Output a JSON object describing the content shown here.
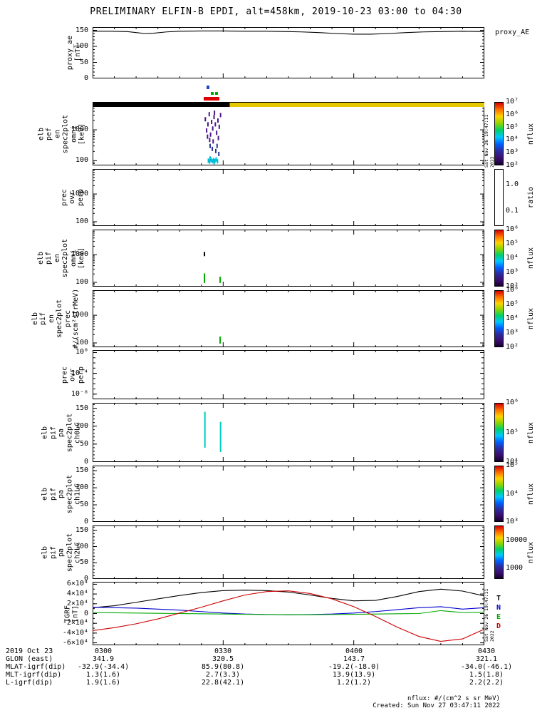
{
  "title": "PRELIMINARY ELFIN-B EPDI, alt=458km, 2019-10-23 03:00 to 04:30",
  "timestamps": {
    "vertical": "Sat Nov 26 19:47:11 2022",
    "created": "Created: Sun Nov 27 03:47:11 2022",
    "nflux_units": "nflux: #/(cm^2 s sr MeV)"
  },
  "right_labels": {
    "proxy_ae": "proxy_AE"
  },
  "bottom_axis": {
    "rows": [
      {
        "label": "2019 Oct 23",
        "values": [
          "0300",
          "0330",
          "0400",
          "0430"
        ]
      },
      {
        "label": "GLON (east)",
        "values": [
          "341.9",
          "320.5",
          "143.7",
          "321.1"
        ]
      },
      {
        "label": "MLAT-igrf(dip)",
        "values": [
          "-32.9(-34.4)",
          "85.9(80.8)",
          "-19.2(-18.0)",
          "-34.0(-46.1)"
        ]
      },
      {
        "label": "MLT-igrf(dip)",
        "values": [
          "1.3(1.6)",
          "2.7(3.3)",
          "13.9(13.9)",
          "1.5(1.8)"
        ]
      },
      {
        "label": "L-igrf(dip)",
        "values": [
          "1.9(1.6)",
          "22.8(42.1)",
          "1.2(1.2)",
          "2.2(2.2)"
        ]
      }
    ]
  },
  "chart_data": [
    {
      "id": "proxy_ae",
      "type": "line",
      "yscale": "linear",
      "ylim": [
        0,
        160
      ],
      "yminor": 10,
      "xlim_minutes_after_0300": [
        0,
        90
      ],
      "ylabel": "proxy_ae\n[nT]",
      "yticks": [
        {
          "v": 0,
          "label": "0"
        },
        {
          "v": 50,
          "label": "50"
        },
        {
          "v": 100,
          "label": "100"
        },
        {
          "v": 150,
          "label": "150"
        }
      ],
      "series": [
        {
          "name": "proxy_AE",
          "color": "#000000",
          "x": [
            0,
            4,
            8,
            10,
            12,
            14,
            17,
            20,
            25,
            30,
            35,
            40,
            45,
            48,
            52,
            56,
            60,
            64,
            68,
            72,
            76,
            80,
            85,
            90
          ],
          "y": [
            147,
            147,
            146,
            143,
            140,
            141,
            145,
            147,
            148,
            148,
            147,
            147,
            146,
            145,
            143,
            140,
            138,
            138,
            140,
            143,
            145,
            146,
            147,
            146
          ]
        }
      ]
    },
    {
      "id": "pef_en_omni",
      "type": "spectrogram",
      "yscale": "log",
      "ylim": [
        70,
        8000
      ],
      "ylabel": "elb\npef\nen\nspec2plot\nomni\n[keV]",
      "yticks": [
        {
          "v": 100,
          "label": "100"
        },
        {
          "v": 1000,
          "label": "1000"
        }
      ],
      "top_bars": [
        {
          "t0": 0,
          "t1": 31.5,
          "color": "#000000"
        },
        {
          "t0": 31.5,
          "t1": 90,
          "color": "#e6c800"
        }
      ],
      "above_marks": [
        {
          "t0": 25.6,
          "t1": 29.2,
          "dy": -7,
          "h": 5,
          "color": "#dd0000"
        },
        {
          "t0": 26.2,
          "t1": 26.8,
          "dy": -23,
          "h": 5,
          "color": "#2244cc"
        },
        {
          "t0": 27.2,
          "t1": 27.9,
          "dy": -14,
          "h": 4,
          "color": "#00aa00"
        },
        {
          "t0": 28.2,
          "t1": 28.8,
          "dy": -14,
          "h": 4,
          "color": "#00aa00"
        }
      ],
      "points": [
        {
          "t": 25.9,
          "y": 2200,
          "color": "#4a148c"
        },
        {
          "t": 26.2,
          "y": 950,
          "color": "#4a148c"
        },
        {
          "t": 26.5,
          "y": 1500,
          "color": "#4a148c"
        },
        {
          "t": 26.8,
          "y": 3200,
          "color": "#4a148c"
        },
        {
          "t": 27.1,
          "y": 700,
          "color": "#4a148c"
        },
        {
          "t": 27.35,
          "y": 1800,
          "color": "#4a148c"
        },
        {
          "t": 27.6,
          "y": 1100,
          "color": "#4a148c"
        },
        {
          "t": 27.9,
          "y": 2600,
          "color": "#4a148c"
        },
        {
          "t": 28.2,
          "y": 1500,
          "color": "#4a148c"
        },
        {
          "t": 28.5,
          "y": 800,
          "color": "#4a148c"
        },
        {
          "t": 28.8,
          "y": 2000,
          "color": "#4a148c"
        },
        {
          "t": 29.1,
          "y": 1250,
          "color": "#4a148c"
        },
        {
          "t": 29.4,
          "y": 3000,
          "color": "#4a148c"
        },
        {
          "t": 26.9,
          "y": 470,
          "color": "#4a148c"
        },
        {
          "t": 27.7,
          "y": 420,
          "color": "#4a148c"
        },
        {
          "t": 28.9,
          "y": 540,
          "color": "#4a148c"
        },
        {
          "t": 28.0,
          "y": 3600,
          "color": "#4a148c"
        },
        {
          "t": 26.4,
          "y": 600,
          "color": "#4a148c"
        },
        {
          "t": 27.0,
          "y": 300,
          "color": "#283593"
        },
        {
          "t": 27.5,
          "y": 240,
          "color": "#283593"
        },
        {
          "t": 28.3,
          "y": 205,
          "color": "#283593"
        },
        {
          "t": 29.0,
          "y": 165,
          "color": "#283593"
        },
        {
          "t": 28.6,
          "y": 300,
          "color": "#283593"
        },
        {
          "t": 26.6,
          "y": 100,
          "color": "#00bcd4"
        },
        {
          "t": 26.9,
          "y": 93,
          "color": "#00bcd4"
        },
        {
          "t": 27.2,
          "y": 108,
          "color": "#00bcd4"
        },
        {
          "t": 27.5,
          "y": 96,
          "color": "#00bcd4"
        },
        {
          "t": 27.8,
          "y": 104,
          "color": "#00bcd4"
        },
        {
          "t": 28.1,
          "y": 98,
          "color": "#00bcd4"
        },
        {
          "t": 28.4,
          "y": 110,
          "color": "#00bcd4"
        },
        {
          "t": 28.7,
          "y": 95,
          "color": "#00bcd4"
        },
        {
          "t": 27.0,
          "y": 118,
          "color": "#00bcd4"
        },
        {
          "t": 27.9,
          "y": 88,
          "color": "#00bcd4"
        }
      ],
      "colorbar": {
        "gradient": "rainbow",
        "title": "nflux",
        "ticks": [
          {
            "f": 1,
            "label": "10⁷"
          },
          {
            "f": 0.8,
            "label": "10⁶"
          },
          {
            "f": 0.6,
            "label": "10⁵"
          },
          {
            "f": 0.4,
            "label": "10⁴"
          },
          {
            "f": 0.2,
            "label": "10³"
          },
          {
            "f": 0,
            "label": "10²"
          }
        ]
      }
    },
    {
      "id": "prec_ovr_perp_en",
      "type": "spectrogram",
      "yscale": "log",
      "ylim": [
        70,
        8000
      ],
      "ylabel": "prec\novr\nperp",
      "yticks": [
        {
          "v": 100,
          "label": "100"
        },
        {
          "v": 1000,
          "label": "1000"
        }
      ],
      "colorbar": {
        "gradient": "none",
        "title": "ratio",
        "ticks": [
          {
            "f": 0.72,
            "label": "1.0"
          },
          {
            "f": 0.26,
            "label": "0.1"
          }
        ]
      }
    },
    {
      "id": "pif_en_omni",
      "type": "spectrogram",
      "yscale": "log",
      "ylim": [
        70,
        8000
      ],
      "ylabel": "elb\npif\nen\nspec2plot\nomni\n[keV]",
      "yticks": [
        {
          "v": 100,
          "label": "100"
        },
        {
          "v": 1000,
          "label": "1000"
        }
      ],
      "points": [
        {
          "t": 25.7,
          "y": 1050,
          "color": "#000000"
        }
      ],
      "segments": [
        {
          "t": 25.7,
          "y0": 95,
          "y1": 210,
          "color": "#00aa00"
        },
        {
          "t": 29.3,
          "y0": 95,
          "y1": 160,
          "color": "#00aa00"
        }
      ],
      "colorbar": {
        "gradient": "rainbow",
        "title": "nflux",
        "ticks": [
          {
            "f": 1,
            "label": "10⁶"
          },
          {
            "f": 0.75,
            "label": "10⁵"
          },
          {
            "f": 0.5,
            "label": "10⁴"
          },
          {
            "f": 0.25,
            "label": "10³"
          },
          {
            "f": 0,
            "label": "10²"
          }
        ]
      }
    },
    {
      "id": "pif_en_prec",
      "type": "spectrogram",
      "yscale": "log",
      "ylim": [
        70,
        8000
      ],
      "ylabel": "elb\npif\nen\nspec2plot\nprec\n#/(scm²strMeV)",
      "yticks": [
        {
          "v": 100,
          "label": "100"
        },
        {
          "v": 1000,
          "label": "1000"
        }
      ],
      "segments": [
        {
          "t": 29.3,
          "y0": 95,
          "y1": 170,
          "color": "#00aa00"
        }
      ],
      "colorbar": {
        "gradient": "rainbow",
        "title": "nflux",
        "ticks": [
          {
            "f": 1,
            "label": "10⁶"
          },
          {
            "f": 0.75,
            "label": "10⁵"
          },
          {
            "f": 0.5,
            "label": "10⁴"
          },
          {
            "f": 0.25,
            "label": "10³"
          },
          {
            "f": 0,
            "label": "10²"
          }
        ]
      }
    },
    {
      "id": "prec_ovr_perp_flux",
      "type": "spectrogram",
      "yscale": "log",
      "ylim": [
        1e-09,
        3
      ],
      "ylabel": "prec\novr\nperp",
      "yticks": [
        {
          "v": 1,
          "label": "10⁰"
        },
        {
          "v": 0.0001,
          "label": "10⁻⁴"
        },
        {
          "v": 1e-08,
          "label": "10⁻⁸"
        }
      ]
    },
    {
      "id": "pif_pa_ch0",
      "type": "spectrogram",
      "yscale": "linear",
      "ylim": [
        0,
        165
      ],
      "yminor": 10,
      "ylabel": "elb\npif\npa\nspec2plot\nch0LC",
      "yticks": [
        {
          "v": 0,
          "label": "0"
        },
        {
          "v": 50,
          "label": "50"
        },
        {
          "v": 100,
          "label": "100"
        },
        {
          "v": 150,
          "label": "150"
        }
      ],
      "segments": [
        {
          "t": 25.8,
          "y0": 40,
          "y1": 140,
          "color": "#00ccbe"
        },
        {
          "t": 29.4,
          "y0": 28,
          "y1": 112,
          "color": "#00ccbe"
        }
      ],
      "colorbar": {
        "gradient": "rainbow",
        "title": "nflux",
        "ticks": [
          {
            "f": 1,
            "label": "10⁶"
          },
          {
            "f": 0.5,
            "label": "10⁵"
          },
          {
            "f": 0,
            "label": "10⁴"
          }
        ]
      }
    },
    {
      "id": "pif_pa_ch1",
      "type": "spectrogram",
      "yscale": "linear",
      "ylim": [
        0,
        165
      ],
      "yminor": 10,
      "ylabel": "elb\npif\npa\nspec2plot\nch1LC",
      "yticks": [
        {
          "v": 0,
          "label": "0"
        },
        {
          "v": 50,
          "label": "50"
        },
        {
          "v": 100,
          "label": "100"
        },
        {
          "v": 150,
          "label": "150"
        }
      ],
      "colorbar": {
        "gradient": "rainbow",
        "title": "nflux",
        "ticks": [
          {
            "f": 1,
            "label": "10⁵"
          },
          {
            "f": 0.5,
            "label": "10⁴"
          },
          {
            "f": 0,
            "label": "10³"
          }
        ]
      }
    },
    {
      "id": "pif_pa_ch2",
      "type": "spectrogram",
      "yscale": "linear",
      "ylim": [
        0,
        165
      ],
      "yminor": 10,
      "ylabel": "elb\npif\npa\nspec2plot\nch2LC",
      "yticks": [
        {
          "v": 0,
          "label": "0"
        },
        {
          "v": 50,
          "label": "50"
        },
        {
          "v": 100,
          "label": "100"
        },
        {
          "v": 150,
          "label": "150"
        }
      ],
      "colorbar": {
        "gradient": "rainbow",
        "title": "nflux",
        "ticks": [
          {
            "f": 0.72,
            "label": "10000"
          },
          {
            "f": 0.2,
            "label": "1000"
          }
        ]
      }
    },
    {
      "id": "igrf",
      "type": "line",
      "yscale": "linear",
      "ylim": [
        -65000,
        65000
      ],
      "yminor": 10000,
      "ylabel": "IGRF\n[nT]",
      "yticks": [
        {
          "v": 60000,
          "label": "6×10⁴"
        },
        {
          "v": 40000,
          "label": "4×10⁴"
        },
        {
          "v": 20000,
          "label": "2×10⁴"
        },
        {
          "v": 0,
          "label": "0"
        },
        {
          "v": -20000,
          "label": "-2×10⁴"
        },
        {
          "v": -40000,
          "label": "-4×10⁴"
        },
        {
          "v": -60000,
          "label": "-6×10⁴"
        }
      ],
      "series": [
        {
          "name": "T",
          "color": "#000000",
          "x": [
            0,
            5,
            10,
            15,
            20,
            25,
            30,
            35,
            40,
            45,
            50,
            55,
            60,
            65,
            70,
            75,
            80,
            85,
            90
          ],
          "y": [
            12000,
            16000,
            23000,
            30000,
            37000,
            43000,
            47000,
            48000,
            47000,
            44000,
            38000,
            31000,
            26000,
            27000,
            35000,
            45000,
            50000,
            46000,
            36000
          ]
        },
        {
          "name": "N",
          "color": "#0000cc",
          "x": [
            0,
            5,
            10,
            15,
            20,
            25,
            30,
            35,
            40,
            45,
            50,
            55,
            60,
            65,
            70,
            75,
            80,
            85,
            90
          ],
          "y": [
            13000,
            12000,
            11000,
            9000,
            7000,
            4000,
            1000,
            -1000,
            -2000,
            -2500,
            -2000,
            -1000,
            1000,
            4000,
            8000,
            12000,
            14000,
            9000,
            12000
          ]
        },
        {
          "name": "E",
          "color": "#00aa00",
          "x": [
            0,
            5,
            10,
            15,
            20,
            25,
            30,
            35,
            40,
            45,
            50,
            55,
            60,
            65,
            70,
            75,
            80,
            85,
            90
          ],
          "y": [
            2000,
            1500,
            1000,
            500,
            0,
            -500,
            -1000,
            -1500,
            -2000,
            -2500,
            -2500,
            -2000,
            -1500,
            -1000,
            -500,
            0,
            6000,
            2000,
            2500
          ]
        },
        {
          "name": "D",
          "color": "#cc0000",
          "x": [
            0,
            5,
            10,
            15,
            20,
            25,
            30,
            35,
            40,
            45,
            50,
            55,
            60,
            65,
            70,
            75,
            80,
            85,
            90
          ],
          "y": [
            -35000,
            -29000,
            -21000,
            -11000,
            1000,
            13000,
            26000,
            38000,
            45000,
            46500,
            41000,
            30000,
            14000,
            -6000,
            -28000,
            -47000,
            -57000,
            -52000,
            -32000
          ]
        }
      ],
      "legend": [
        {
          "label": "T",
          "color": "#000000"
        },
        {
          "label": "N",
          "color": "#0000cc"
        },
        {
          "label": "E",
          "color": "#00aa00"
        },
        {
          "label": "D",
          "color": "#cc0000"
        }
      ]
    }
  ]
}
